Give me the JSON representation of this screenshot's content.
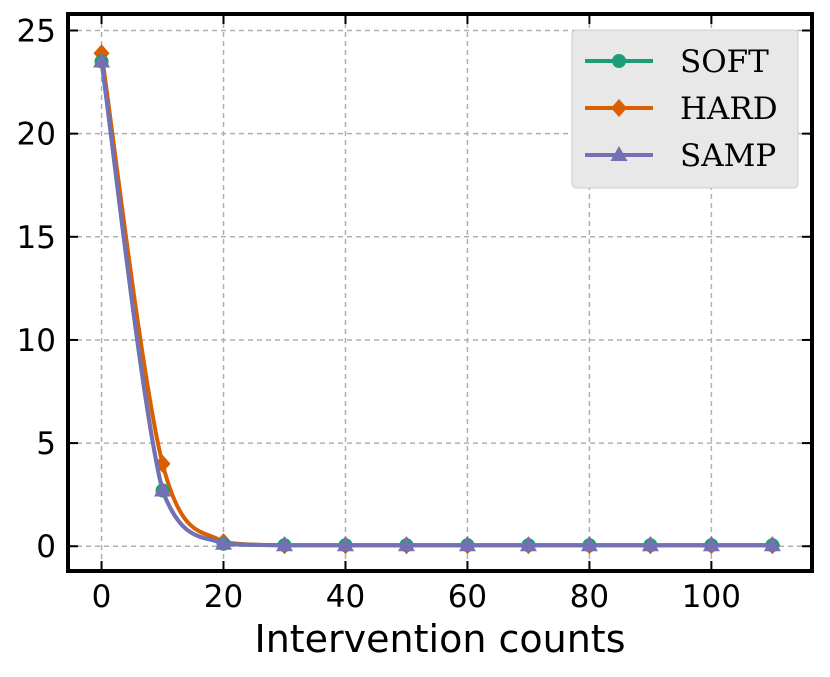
{
  "chart_data": {
    "type": "line",
    "title": "",
    "xlabel": "Intervention counts",
    "ylabel": "",
    "xlim": [
      -5.5,
      116.5
    ],
    "ylim": [
      -1.2,
      25.8
    ],
    "xticks": [
      0,
      20,
      40,
      60,
      80,
      100
    ],
    "yticks": [
      0,
      5,
      10,
      15,
      20,
      25
    ],
    "grid": true,
    "legend_position": "top-right",
    "x": [
      0,
      10,
      20,
      30,
      40,
      50,
      60,
      70,
      80,
      90,
      100,
      110
    ],
    "series": [
      {
        "name": "SOFT",
        "color": "#1b9e77",
        "marker": "circle",
        "values": [
          23.5,
          2.7,
          0.12,
          0.05,
          0.05,
          0.05,
          0.05,
          0.05,
          0.05,
          0.05,
          0.05,
          0.05
        ]
      },
      {
        "name": "HARD",
        "color": "#d95f02",
        "marker": "diamond",
        "values": [
          23.9,
          4.0,
          0.2,
          0.05,
          0.05,
          0.05,
          0.05,
          0.05,
          0.05,
          0.05,
          0.05,
          0.05
        ]
      },
      {
        "name": "SAMP",
        "color": "#7570b3",
        "marker": "triangle",
        "values": [
          23.5,
          2.7,
          0.12,
          0.05,
          0.05,
          0.05,
          0.05,
          0.05,
          0.05,
          0.05,
          0.05,
          0.05
        ]
      }
    ]
  }
}
